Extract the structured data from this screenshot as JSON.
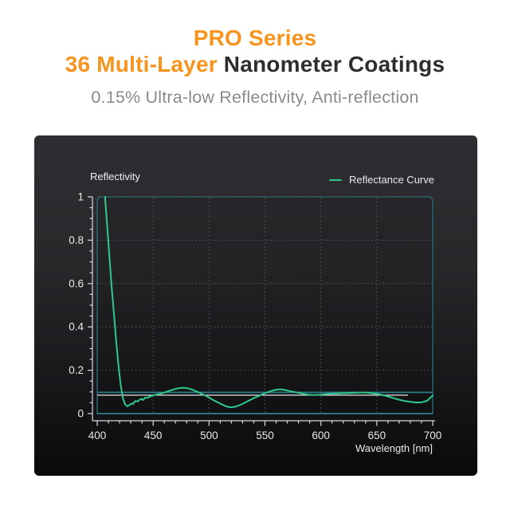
{
  "header": {
    "title_line1": "PRO Series",
    "title_line2_orange": "36 Multi-Layer",
    "title_line2_dark": " Nanometer Coatings",
    "subtitle": "0.15% Ultra-low Reflectivity, Anti-reflection"
  },
  "colors": {
    "orange": "#F7941E",
    "title_dark": "#2E2E2E",
    "subtitle_gray": "#8B8B8B",
    "panel_top": "#2F2F33",
    "panel_bottom": "#0A0A0C",
    "axis": "#D7DADD",
    "tick_label": "#E8EAEC",
    "grid_dotted": "#5A5B60",
    "box_border": "#24606C",
    "teal_line": "#2E7D8A",
    "ref_white": "#E8E8E8",
    "curve_green": "#2FC98C",
    "plot_fill": "rgba(0,0,0,0.10)"
  },
  "chart_data": {
    "type": "line",
    "title": "",
    "xlabel": "Wavelength [nm]",
    "ylabel": "Reflectivity",
    "xlim": [
      400,
      700
    ],
    "ylim": [
      0,
      1
    ],
    "x_ticks": [
      400,
      450,
      500,
      550,
      600,
      650,
      700
    ],
    "x_tick_labels": [
      "400",
      "450",
      "500",
      "550",
      "600",
      "650",
      "700"
    ],
    "y_ticks": [
      0,
      0.2,
      0.4,
      0.6,
      0.8,
      1
    ],
    "y_tick_labels": [
      "0",
      "0.2",
      "0.4",
      "0.6",
      "0.8",
      "1"
    ],
    "x_minor_step": 10,
    "y_minor_step": 0.05,
    "grid": "dotted",
    "legend_position": "top-right",
    "series": [
      {
        "name": "Reflectance Curve",
        "points": [
          [
            407,
            1.0
          ],
          [
            409,
            0.86
          ],
          [
            411,
            0.72
          ],
          [
            413,
            0.58
          ],
          [
            415,
            0.46
          ],
          [
            417,
            0.33
          ],
          [
            419,
            0.22
          ],
          [
            421,
            0.13
          ],
          [
            423,
            0.07
          ],
          [
            425,
            0.042
          ],
          [
            427,
            0.034
          ],
          [
            429,
            0.04
          ],
          [
            431,
            0.047
          ],
          [
            432,
            0.044
          ],
          [
            434,
            0.058
          ],
          [
            436,
            0.056
          ],
          [
            438,
            0.064
          ],
          [
            440,
            0.068
          ],
          [
            441,
            0.062
          ],
          [
            443,
            0.074
          ],
          [
            445,
            0.072
          ],
          [
            447,
            0.079
          ],
          [
            450,
            0.084
          ],
          [
            453,
            0.088
          ],
          [
            456,
            0.091
          ],
          [
            460,
            0.097
          ],
          [
            464,
            0.104
          ],
          [
            468,
            0.111
          ],
          [
            472,
            0.116
          ],
          [
            476,
            0.119
          ],
          [
            480,
            0.118
          ],
          [
            484,
            0.112
          ],
          [
            488,
            0.104
          ],
          [
            492,
            0.095
          ],
          [
            496,
            0.085
          ],
          [
            500,
            0.074
          ],
          [
            504,
            0.062
          ],
          [
            508,
            0.051
          ],
          [
            512,
            0.041
          ],
          [
            516,
            0.032
          ],
          [
            520,
            0.029
          ],
          [
            524,
            0.032
          ],
          [
            528,
            0.04
          ],
          [
            532,
            0.05
          ],
          [
            536,
            0.061
          ],
          [
            540,
            0.071
          ],
          [
            544,
            0.08
          ],
          [
            548,
            0.09
          ],
          [
            552,
            0.098
          ],
          [
            556,
            0.105
          ],
          [
            560,
            0.11
          ],
          [
            564,
            0.112
          ],
          [
            568,
            0.109
          ],
          [
            572,
            0.104
          ],
          [
            576,
            0.1
          ],
          [
            580,
            0.096
          ],
          [
            584,
            0.091
          ],
          [
            588,
            0.088
          ],
          [
            592,
            0.086
          ],
          [
            596,
            0.086
          ],
          [
            600,
            0.087
          ],
          [
            605,
            0.09
          ],
          [
            610,
            0.092
          ],
          [
            615,
            0.093
          ],
          [
            620,
            0.094
          ],
          [
            625,
            0.095
          ],
          [
            630,
            0.096
          ],
          [
            635,
            0.097
          ],
          [
            640,
            0.097
          ],
          [
            645,
            0.095
          ],
          [
            650,
            0.091
          ],
          [
            655,
            0.086
          ],
          [
            660,
            0.079
          ],
          [
            665,
            0.071
          ],
          [
            670,
            0.064
          ],
          [
            675,
            0.058
          ],
          [
            680,
            0.054
          ],
          [
            685,
            0.051
          ],
          [
            690,
            0.052
          ],
          [
            695,
            0.059
          ],
          [
            700,
            0.084
          ]
        ]
      }
    ],
    "reference_lines": [
      {
        "y": 0.098,
        "color": "teal",
        "x_range": [
          400,
          700
        ]
      },
      {
        "y": 0.085,
        "color": "white",
        "x_range": [
          400,
          678
        ]
      },
      {
        "y": 0.0,
        "color": "teal",
        "x_range": [
          400,
          700
        ]
      }
    ]
  }
}
